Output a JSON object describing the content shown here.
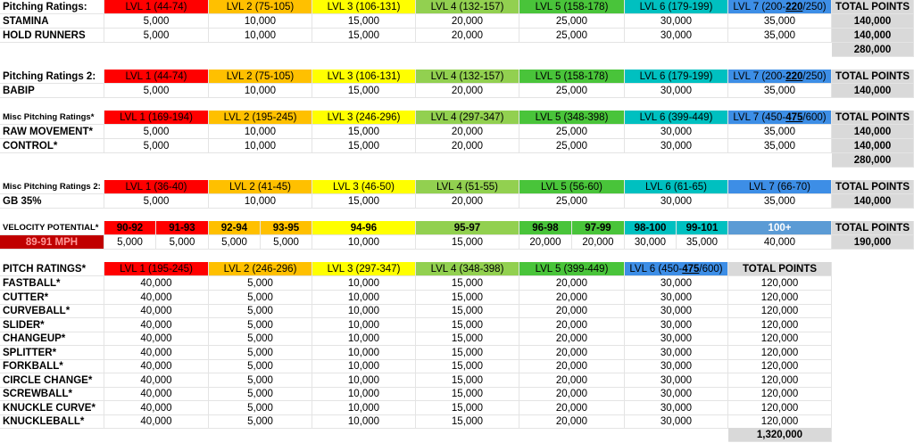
{
  "colors": {
    "lvl1": "#ff0000",
    "lvl2": "#ffc000",
    "lvl3": "#ffff00",
    "lvl4": "#92d050",
    "lvl5": "#49c43a",
    "lvl6": "#00c0c0",
    "lvl7": "#3d8ee6",
    "total_bg": "#d9d9d9"
  },
  "total_header": "TOTAL POINTS",
  "pitching": {
    "title": "Pitching Ratings:",
    "levels": [
      "LVL 1 (44-74)",
      "LVL 2 (75-105)",
      "LVL 3 (106-131)",
      "LVL 4 (132-157)",
      "LVL 5 (158-178)",
      "LVL 6 (179-199)"
    ],
    "lvl7": {
      "pre": "LVL 7 (200-",
      "mid": "220",
      "post": "/250)"
    },
    "rows": [
      {
        "name": "STAMINA",
        "values": [
          "5,000",
          "10,000",
          "15,000",
          "20,000",
          "25,000",
          "30,000",
          "35,000"
        ],
        "total": "140,000"
      },
      {
        "name": "HOLD RUNNERS",
        "values": [
          "5,000",
          "10,000",
          "15,000",
          "20,000",
          "25,000",
          "30,000",
          "35,000"
        ],
        "total": "140,000"
      }
    ],
    "sum": "280,000"
  },
  "pitching2": {
    "title": "Pitching Ratings 2:",
    "levels": [
      "LVL 1 (44-74)",
      "LVL 2 (75-105)",
      "LVL 3 (106-131)",
      "LVL 4 (132-157)",
      "LVL 5 (158-178)",
      "LVL 6 (179-199)"
    ],
    "lvl7": {
      "pre": "LVL 7 (200-",
      "mid": "220",
      "post": "/250)"
    },
    "rows": [
      {
        "name": "BABIP",
        "values": [
          "5,000",
          "10,000",
          "15,000",
          "20,000",
          "25,000",
          "30,000",
          "35,000"
        ],
        "total": "140,000"
      }
    ]
  },
  "misc": {
    "title": "Misc Pitching Ratings*",
    "levels": [
      "LVL 1 (169-194)",
      "LVL 2 (195-245)",
      "LVL 3 (246-296)",
      "LVL 4 (297-347)",
      "LVL 5 (348-398)",
      "LVL 6 (399-449)"
    ],
    "lvl7": {
      "pre": "LVL 7 (450-",
      "mid": "475",
      "post": "/600)"
    },
    "rows": [
      {
        "name": "RAW MOVEMENT*",
        "values": [
          "5,000",
          "10,000",
          "15,000",
          "20,000",
          "25,000",
          "30,000",
          "35,000"
        ],
        "total": "140,000"
      },
      {
        "name": "CONTROL*",
        "values": [
          "5,000",
          "10,000",
          "15,000",
          "20,000",
          "25,000",
          "30,000",
          "35,000"
        ],
        "total": "140,000"
      }
    ],
    "sum": "280,000"
  },
  "misc2": {
    "title": "Misc Pitching Ratings 2:",
    "levels": [
      "LVL 1 (36-40)",
      "LVL 2 (41-45)",
      "LVL 3 (46-50)",
      "LVL 4 (51-55)",
      "LVL 5 (56-60)",
      "LVL 6 (61-65)",
      "LVL 7 (66-70)"
    ],
    "rows": [
      {
        "name": "GB 35%",
        "values": [
          "5,000",
          "10,000",
          "15,000",
          "20,000",
          "25,000",
          "30,000",
          "35,000"
        ],
        "total": "140,000"
      }
    ]
  },
  "velocity": {
    "title": "VELOCITY POTENTIAL*",
    "current": "89-91 MPH",
    "ranges": [
      "90-92",
      "91-93",
      "92-94",
      "93-95",
      "94-96",
      "95-97",
      "96-98",
      "97-99",
      "98-100",
      "99-101",
      "100+"
    ],
    "values": [
      "5,000",
      "5,000",
      "5,000",
      "5,000",
      "10,000",
      "15,000",
      "20,000",
      "20,000",
      "30,000",
      "35,000",
      "40,000"
    ],
    "total": "190,000"
  },
  "pitches": {
    "title": "PITCH RATINGS*",
    "levels": [
      "LVL 1 (195-245)",
      "LVL 2 (246-296)",
      "LVL 3 (297-347)",
      "LVL 4 (348-398)",
      "LVL 5 (399-449)"
    ],
    "lvl6": {
      "pre": "LVL 6 (450-",
      "mid": "475",
      "post": "/600)"
    },
    "rows": [
      {
        "name": "FASTBALL*",
        "values": [
          "40,000",
          "5,000",
          "10,000",
          "15,000",
          "20,000",
          "30,000"
        ],
        "total": "120,000"
      },
      {
        "name": "CUTTER*",
        "values": [
          "40,000",
          "5,000",
          "10,000",
          "15,000",
          "20,000",
          "30,000"
        ],
        "total": "120,000"
      },
      {
        "name": "CURVEBALL*",
        "values": [
          "40,000",
          "5,000",
          "10,000",
          "15,000",
          "20,000",
          "30,000"
        ],
        "total": "120,000"
      },
      {
        "name": "SLIDER*",
        "values": [
          "40,000",
          "5,000",
          "10,000",
          "15,000",
          "20,000",
          "30,000"
        ],
        "total": "120,000"
      },
      {
        "name": "CHANGEUP*",
        "values": [
          "40,000",
          "5,000",
          "10,000",
          "15,000",
          "20,000",
          "30,000"
        ],
        "total": "120,000"
      },
      {
        "name": "SPLITTER*",
        "values": [
          "40,000",
          "5,000",
          "10,000",
          "15,000",
          "20,000",
          "30,000"
        ],
        "total": "120,000"
      },
      {
        "name": "FORKBALL*",
        "values": [
          "40,000",
          "5,000",
          "10,000",
          "15,000",
          "20,000",
          "30,000"
        ],
        "total": "120,000"
      },
      {
        "name": "CIRCLE CHANGE*",
        "values": [
          "40,000",
          "5,000",
          "10,000",
          "15,000",
          "20,000",
          "30,000"
        ],
        "total": "120,000"
      },
      {
        "name": "SCREWBALL*",
        "values": [
          "40,000",
          "5,000",
          "10,000",
          "15,000",
          "20,000",
          "30,000"
        ],
        "total": "120,000"
      },
      {
        "name": "KNUCKLE CURVE*",
        "values": [
          "40,000",
          "5,000",
          "10,000",
          "15,000",
          "20,000",
          "30,000"
        ],
        "total": "120,000"
      },
      {
        "name": "KNUCKLEBALL*",
        "values": [
          "40,000",
          "5,000",
          "10,000",
          "15,000",
          "20,000",
          "30,000"
        ],
        "total": "120,000"
      }
    ],
    "sum": "1,320,000"
  }
}
